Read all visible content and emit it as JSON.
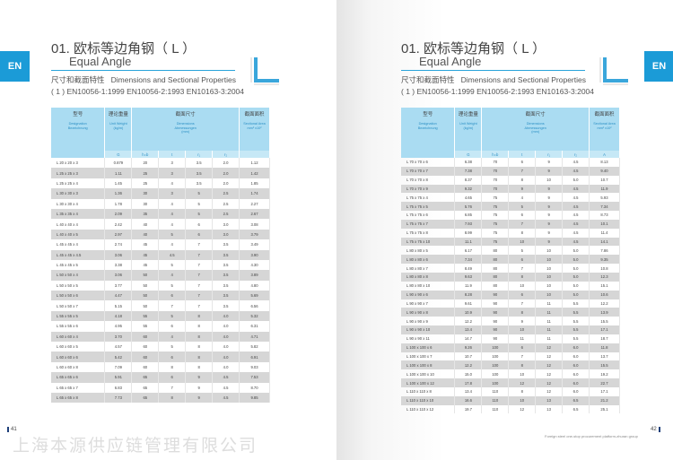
{
  "en_tab": "EN",
  "title": "01. 欧标等边角钢（ L ）",
  "subtitle": "Equal Angle",
  "dimensions_label": "尺寸和截面特性",
  "dimensions_en": "Dimensions and Sectional Properties",
  "standards": "( 1 ) EN10056-1:1999  EN10056-2:1993  EN10163-3:2004",
  "accent": "#1b9bd7",
  "header": {
    "designation_cn": "型号",
    "designation_en": "Designation",
    "designation_de": "Bezeichnung",
    "weight_cn": "理论重量",
    "weight_en": "Unit Weight",
    "weight_unit": "(kg/m)",
    "dim_cn": "截面尺寸",
    "dim_en": "Dimensions",
    "dim_de": "Abmessungen",
    "dim_unit": "(mm)",
    "area_cn": "截面面积",
    "area_en": "Sectional Area",
    "area_unit": "mm² x10²"
  },
  "sub_left": [
    "G",
    "h=b",
    "t",
    "r₁",
    "r₂",
    ""
  ],
  "sub_right": [
    "G",
    "h=b",
    "t",
    "r₁",
    "r₂",
    "A"
  ],
  "left_rows": [
    [
      "L 20 x 20 x 3",
      "0.879",
      "20",
      "3",
      "3.5",
      "2.0",
      "1.12"
    ],
    [
      "L 25 x 25 x 3",
      "1.11",
      "25",
      "3",
      "3.5",
      "2.0",
      "1.42"
    ],
    [
      "L 25 x 25 x 4",
      "1.45",
      "25",
      "4",
      "3.5",
      "2.0",
      "1.85"
    ],
    [
      "L 30 x 30 x 3",
      "1.36",
      "30",
      "3",
      "5",
      "2.5",
      "1.74"
    ],
    [
      "L 30 x 30 x 4",
      "1.78",
      "30",
      "4",
      "5",
      "2.5",
      "2.27"
    ],
    [
      "L 35 x 35 x 4",
      "2.09",
      "35",
      "4",
      "5",
      "2.5",
      "2.67"
    ],
    [
      "L 40 x 40 x 4",
      "2.42",
      "40",
      "4",
      "6",
      "3.0",
      "3.08"
    ],
    [
      "L 40 x 40 x 5",
      "2.97",
      "40",
      "5",
      "6",
      "3.0",
      "3.79"
    ],
    [
      "L 45 x 45 x 4",
      "2.74",
      "45",
      "4",
      "7",
      "3.5",
      "3.49"
    ],
    [
      "L 45 x 45 x 4.5",
      "3.06",
      "45",
      "4.5",
      "7",
      "3.5",
      "3.90"
    ],
    [
      "L 45 x 45 x 5",
      "3.38",
      "45",
      "5",
      "7",
      "3.5",
      "4.30"
    ],
    [
      "L 50 x 50 x 4",
      "3.06",
      "50",
      "4",
      "7",
      "3.5",
      "3.89"
    ],
    [
      "L 50 x 50 x 5",
      "3.77",
      "50",
      "5",
      "7",
      "3.5",
      "4.80"
    ],
    [
      "L 50 x 50 x 6",
      "4.47",
      "50",
      "6",
      "7",
      "3.5",
      "5.69"
    ],
    [
      "L 50 x 50 x 7",
      "5.15",
      "50",
      "7",
      "7",
      "3.5",
      "6.56"
    ],
    [
      "L 55 x 55 x 5",
      "4.18",
      "55",
      "5",
      "8",
      "4.0",
      "5.32"
    ],
    [
      "L 55 x 55 x 6",
      "4.95",
      "55",
      "6",
      "8",
      "4.0",
      "6.31"
    ],
    [
      "L 60 x 60 x 4",
      "3.70",
      "60",
      "4",
      "8",
      "4.0",
      "4.71"
    ],
    [
      "L 60 x 60 x 5",
      "4.57",
      "60",
      "5",
      "8",
      "4.0",
      "5.82"
    ],
    [
      "L 60 x 60 x 6",
      "5.42",
      "60",
      "6",
      "8",
      "4.0",
      "6.91"
    ],
    [
      "L 60 x 60 x 8",
      "7.09",
      "60",
      "8",
      "8",
      "4.0",
      "9.03"
    ],
    [
      "L 65 x 65 x 6",
      "5.91",
      "65",
      "6",
      "9",
      "4.5",
      "7.53"
    ],
    [
      "L 65 x 65 x 7",
      "6.83",
      "65",
      "7",
      "9",
      "4.5",
      "8.70"
    ],
    [
      "L 65 x 65 x 8",
      "7.73",
      "65",
      "8",
      "9",
      "4.5",
      "9.85"
    ]
  ],
  "right_rows": [
    [
      "L 70 x 70 x 6",
      "6.38",
      "70",
      "6",
      "9",
      "4.5",
      "8.13"
    ],
    [
      "L 70 x 70 x 7",
      "7.38",
      "70",
      "7",
      "9",
      "4.5",
      "9.40"
    ],
    [
      "L 70 x 70 x 8",
      "8.37",
      "70",
      "8",
      "10",
      "5.0",
      "10.7"
    ],
    [
      "L 70 x 70 x 9",
      "9.32",
      "70",
      "9",
      "9",
      "4.5",
      "11.9"
    ],
    [
      "L 75 x 75 x 4",
      "4.65",
      "75",
      "4",
      "9",
      "4.5",
      "5.93"
    ],
    [
      "L 75 x 75 x 5",
      "5.76",
      "75",
      "5",
      "9",
      "4.5",
      "7.34"
    ],
    [
      "L 75 x 75 x 6",
      "6.85",
      "75",
      "6",
      "9",
      "4.5",
      "8.73"
    ],
    [
      "L 75 x 75 x 7",
      "7.93",
      "75",
      "7",
      "9",
      "4.5",
      "10.1"
    ],
    [
      "L 75 x 75 x 8",
      "8.99",
      "75",
      "8",
      "9",
      "4.5",
      "11.4"
    ],
    [
      "L 75 x 75 x 10",
      "11.1",
      "75",
      "10",
      "9",
      "4.5",
      "14.1"
    ],
    [
      "L 80 x 80 x 5",
      "6.17",
      "80",
      "5",
      "10",
      "5.0",
      "7.86"
    ],
    [
      "L 80 x 80 x 6",
      "7.34",
      "80",
      "6",
      "10",
      "5.0",
      "9.35"
    ],
    [
      "L 80 x 80 x 7",
      "8.49",
      "80",
      "7",
      "10",
      "5.0",
      "10.8"
    ],
    [
      "L 80 x 80 x 8",
      "9.63",
      "80",
      "8",
      "10",
      "5.0",
      "12.3"
    ],
    [
      "L 80 x 80 x 10",
      "11.9",
      "80",
      "10",
      "10",
      "5.0",
      "15.1"
    ],
    [
      "L 90 x 90 x 6",
      "8.28",
      "90",
      "6",
      "10",
      "5.0",
      "10.6"
    ],
    [
      "L 90 x 90 x 7",
      "9.61",
      "90",
      "7",
      "11",
      "5.5",
      "12.2"
    ],
    [
      "L 90 x 90 x 8",
      "10.9",
      "90",
      "8",
      "11",
      "5.5",
      "13.9"
    ],
    [
      "L 90 x 90 x 9",
      "12.2",
      "90",
      "9",
      "11",
      "5.5",
      "15.5"
    ],
    [
      "L 90 x 90 x 10",
      "13.4",
      "90",
      "10",
      "11",
      "5.5",
      "17.1"
    ],
    [
      "L 90 x 90 x 11",
      "14.7",
      "90",
      "11",
      "11",
      "5.5",
      "18.7"
    ],
    [
      "L 100 x 100 x 6",
      "9.26",
      "100",
      "6",
      "12",
      "6.0",
      "11.8"
    ],
    [
      "L 100 x 100 x 7",
      "10.7",
      "100",
      "7",
      "12",
      "6.0",
      "13.7"
    ],
    [
      "L 100 x 100 x 8",
      "12.2",
      "100",
      "8",
      "12",
      "6.0",
      "15.5"
    ],
    [
      "L 100 x 100 x 10",
      "15.0",
      "100",
      "10",
      "12",
      "6.0",
      "19.2"
    ],
    [
      "L 100 x 100 x 12",
      "17.8",
      "100",
      "12",
      "12",
      "6.0",
      "22.7"
    ],
    [
      "L 110 x 110 x 8",
      "13.4",
      "110",
      "8",
      "12",
      "6.0",
      "17.1"
    ],
    [
      "L 110 x 110 x 10",
      "16.6",
      "110",
      "10",
      "13",
      "6.5",
      "21.2"
    ],
    [
      "L 110 x 110 x 12",
      "19.7",
      "110",
      "12",
      "13",
      "6.5",
      "25.1"
    ]
  ],
  "page_left": "41",
  "page_right": "42",
  "footer_right": "Foreign steel one-stop procurement platform-zhuran group",
  "watermark": "上海本源供应链管理有限公司"
}
